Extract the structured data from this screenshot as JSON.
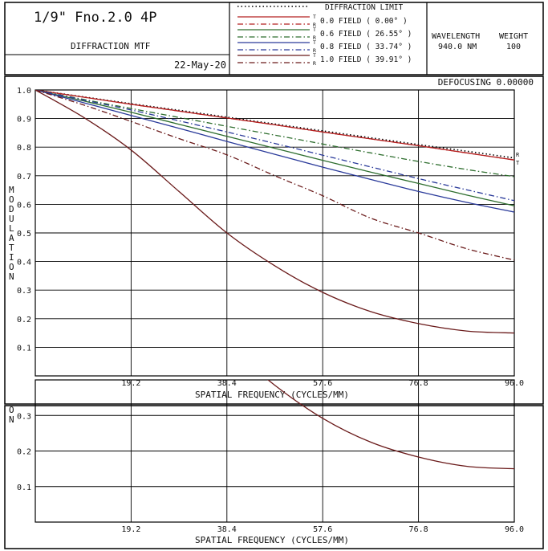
{
  "header": {
    "lens_title": "1/9\" Fno.2.0 4P",
    "chart_name": "DIFFRACTION MTF",
    "date": "22-May-20",
    "wavelength_label": "WAVELENGTH",
    "weight_label": "WEIGHT",
    "wavelength_value": "940.0 NM",
    "weight_value": "100",
    "legend": [
      {
        "label": "DIFFRACTION LIMIT",
        "t_mark": "",
        "r_mark": ""
      },
      {
        "label": "0.0 FIELD ( 0.00° )",
        "t_mark": "T",
        "r_mark": "R"
      },
      {
        "label": "0.6 FIELD ( 26.55° )",
        "t_mark": "T",
        "r_mark": "R"
      },
      {
        "label": "0.8 FIELD ( 33.74° )",
        "t_mark": "T",
        "r_mark": "R"
      },
      {
        "label": "1.0 FIELD ( 39.91° )",
        "t_mark": "T",
        "r_mark": "R"
      }
    ]
  },
  "main_chart": {
    "defocus_label": "DEFOCUSING 0.00000",
    "end_marks": {
      "r": "R",
      "t": "T"
    }
  },
  "bottom_chart": {
    "axis_fragment": "O\nN"
  },
  "colors": {
    "diffraction": "#000000",
    "field0": "#b52020",
    "field06": "#2e6e2e",
    "field08": "#2a3a9a",
    "field10": "#6a1a1a",
    "grid": "#000000"
  },
  "chart_data": [
    {
      "type": "line",
      "title": "DIFFRACTION MTF",
      "xlabel": "SPATIAL FREQUENCY (CYCLES/MM)",
      "ylabel": "MODULATION",
      "xlim": [
        0,
        96
      ],
      "ylim": [
        0,
        1.0
      ],
      "x_ticks": [
        "19.2",
        "38.4",
        "57.6",
        "76.8",
        "96.0"
      ],
      "y_ticks": [
        "1.0",
        "0.9",
        "0.8",
        "0.7",
        "0.6",
        "0.5",
        "0.4",
        "0.3",
        "0.2",
        "0.1"
      ],
      "grid": true,
      "x": [
        0,
        9.6,
        19.2,
        28.8,
        38.4,
        48,
        57.6,
        67.2,
        76.8,
        86.4,
        96
      ],
      "series": [
        {
          "name": "DIFFRACTION LIMIT",
          "style": "dotted",
          "color": "#000000",
          "values": [
            1.0,
            0.976,
            0.952,
            0.929,
            0.905,
            0.881,
            0.857,
            0.833,
            0.809,
            0.786,
            0.762
          ]
        },
        {
          "name": "0.0 FIELD ( 0.00° )",
          "orientation": "T",
          "style": "solid",
          "color": "#b52020",
          "values": [
            1.0,
            0.975,
            0.95,
            0.926,
            0.902,
            0.878,
            0.853,
            0.829,
            0.805,
            0.78,
            0.755
          ]
        },
        {
          "name": "0.0 FIELD ( 0.00° )",
          "orientation": "R",
          "style": "dashdot",
          "color": "#b52020",
          "values": [
            1.0,
            0.975,
            0.95,
            0.926,
            0.902,
            0.878,
            0.853,
            0.829,
            0.805,
            0.78,
            0.755
          ]
        },
        {
          "name": "0.6 FIELD ( 26.55° )",
          "orientation": "T",
          "style": "solid",
          "color": "#2e6e2e",
          "values": [
            1.0,
            0.962,
            0.922,
            0.88,
            0.838,
            0.796,
            0.754,
            0.713,
            0.673,
            0.633,
            0.595
          ]
        },
        {
          "name": "0.6 FIELD ( 26.55° )",
          "orientation": "R",
          "style": "dashdot",
          "color": "#2e6e2e",
          "values": [
            1.0,
            0.967,
            0.935,
            0.904,
            0.873,
            0.842,
            0.811,
            0.78,
            0.75,
            0.722,
            0.697
          ]
        },
        {
          "name": "0.8 FIELD ( 33.74° )",
          "orientation": "T",
          "style": "solid",
          "color": "#2a3a9a",
          "values": [
            1.0,
            0.956,
            0.911,
            0.866,
            0.82,
            0.775,
            0.73,
            0.687,
            0.645,
            0.607,
            0.573
          ]
        },
        {
          "name": "0.8 FIELD ( 33.74° )",
          "orientation": "R",
          "style": "dashdot",
          "color": "#2a3a9a",
          "values": [
            1.0,
            0.965,
            0.93,
            0.892,
            0.853,
            0.813,
            0.772,
            0.731,
            0.69,
            0.651,
            0.613
          ]
        },
        {
          "name": "1.0 FIELD ( 39.91° )",
          "orientation": "T",
          "style": "solid",
          "color": "#6a1a1a",
          "values": [
            1.0,
            0.905,
            0.79,
            0.645,
            0.5,
            0.385,
            0.292,
            0.225,
            0.183,
            0.157,
            0.15
          ]
        },
        {
          "name": "1.0 FIELD ( 39.91° )",
          "orientation": "R",
          "style": "dashdot",
          "color": "#6a1a1a",
          "values": [
            1.0,
            0.948,
            0.89,
            0.83,
            0.773,
            0.7,
            0.63,
            0.552,
            0.5,
            0.445,
            0.405
          ]
        }
      ]
    },
    {
      "type": "line",
      "xlabel": "SPATIAL FREQUENCY (CYCLES/MM)",
      "xlim": [
        0,
        96
      ],
      "ylim": [
        0,
        0.4
      ],
      "x_ticks": [
        "19.2",
        "38.4",
        "57.6",
        "76.8",
        "96.0"
      ],
      "y_ticks": [
        "0.3",
        "0.2",
        "0.1"
      ],
      "grid": true,
      "x": [
        38.4,
        48,
        57.6,
        67.2,
        76.8,
        86.4,
        96
      ],
      "series": [
        {
          "name": "1.0 FIELD ( 39.91° )",
          "orientation": "T",
          "style": "solid",
          "color": "#6a1a1a",
          "values": [
            0.5,
            0.385,
            0.292,
            0.225,
            0.183,
            0.157,
            0.15
          ]
        }
      ]
    }
  ]
}
